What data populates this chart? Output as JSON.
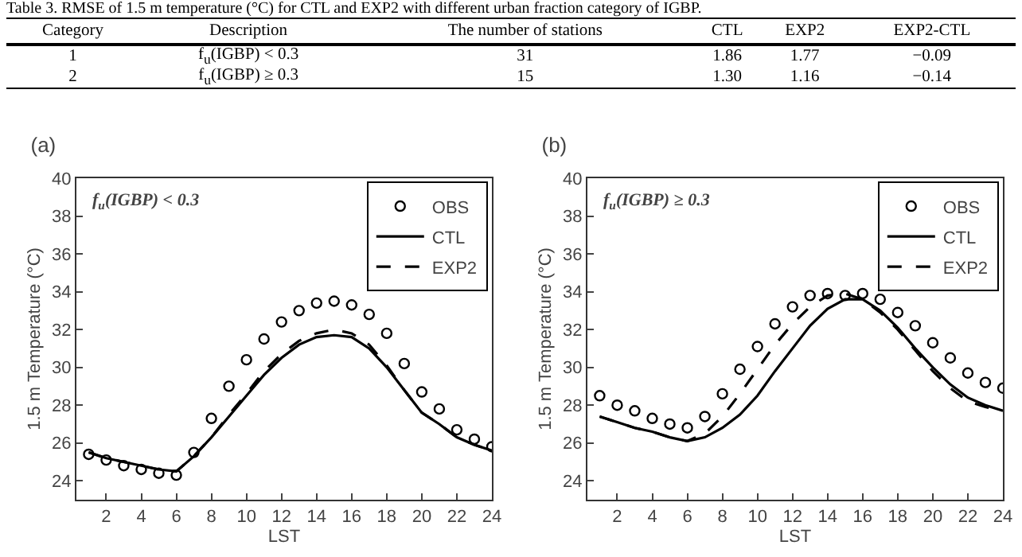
{
  "chart_data": [
    {
      "type": "other",
      "title": "Table 3. RMSE of 1.5 m temperature (°C) for CTL and EXP2 with different urban fraction category of IGBP.",
      "categories": [
        "Category",
        "Description",
        "The number of stations",
        "CTL",
        "EXP2",
        "EXP2-CTL"
      ],
      "cell_labels": [
        [
          "1",
          "f$_{u}$(IGBP) < 0.3",
          "31",
          "1.86",
          "1.77",
          "−0.09"
        ],
        [
          "2",
          "f$_{u}$(IGBP) ≥ 0.3",
          "15",
          "1.30",
          "1.16",
          "−0.14"
        ]
      ]
    },
    {
      "type": "line",
      "title": "(a)",
      "annotations": [
        "f$_{u}$(IGBP) < 0.3"
      ],
      "xlabel": "LST",
      "ylabel": "1.5 m Temperature (°C)",
      "x": [
        1,
        2,
        3,
        4,
        5,
        6,
        7,
        8,
        9,
        10,
        11,
        12,
        13,
        14,
        15,
        16,
        17,
        18,
        19,
        20,
        21,
        22,
        23,
        24
      ],
      "xlim": [
        0.3,
        24
      ],
      "xticks": [
        2,
        4,
        6,
        8,
        10,
        12,
        14,
        16,
        18,
        20,
        22,
        24
      ],
      "ylim": [
        23,
        40
      ],
      "yticks": [
        24,
        26,
        28,
        30,
        32,
        34,
        36,
        38,
        40
      ],
      "grid": false,
      "legend": "top right",
      "series": [
        {
          "name": "OBS",
          "type": "scatter",
          "marker": "circle",
          "color": "#000000",
          "values": [
            25.4,
            25.1,
            24.8,
            24.6,
            24.4,
            24.3,
            25.5,
            27.3,
            29.0,
            30.4,
            31.5,
            32.4,
            33.0,
            33.4,
            33.5,
            33.3,
            32.8,
            31.8,
            30.2,
            28.7,
            27.8,
            26.7,
            26.2,
            25.8
          ]
        },
        {
          "name": "CTL",
          "type": "line",
          "line_style": "solid",
          "color": "#000000",
          "values": [
            25.5,
            25.2,
            25.0,
            24.8,
            24.6,
            24.5,
            25.3,
            26.3,
            27.4,
            28.5,
            29.6,
            30.5,
            31.2,
            31.6,
            31.7,
            31.6,
            31.0,
            30.0,
            28.8,
            27.6,
            27.0,
            26.3,
            25.9,
            25.6
          ]
        },
        {
          "name": "EXP2",
          "type": "line",
          "line_style": "dashed",
          "color": "#000000",
          "values": [
            25.5,
            25.2,
            25.0,
            24.8,
            24.6,
            24.5,
            25.3,
            26.3,
            27.5,
            28.6,
            29.8,
            30.7,
            31.4,
            31.8,
            32.0,
            31.8,
            31.2,
            30.1,
            28.8,
            27.6,
            27.0,
            26.3,
            25.9,
            25.6
          ]
        }
      ]
    },
    {
      "type": "line",
      "title": "(b)",
      "annotations": [
        "f$_{u}$(IGBP) ≥ 0.3"
      ],
      "xlabel": "LST",
      "ylabel": "1.5 m Temperature (°C)",
      "x": [
        1,
        2,
        3,
        4,
        5,
        6,
        7,
        8,
        9,
        10,
        11,
        12,
        13,
        14,
        15,
        16,
        17,
        18,
        19,
        20,
        21,
        22,
        23,
        24
      ],
      "xlim": [
        0.3,
        24
      ],
      "xticks": [
        2,
        4,
        6,
        8,
        10,
        12,
        14,
        16,
        18,
        20,
        22,
        24
      ],
      "ylim": [
        23,
        40
      ],
      "yticks": [
        24,
        26,
        28,
        30,
        32,
        34,
        36,
        38,
        40
      ],
      "grid": false,
      "legend": "top right",
      "series": [
        {
          "name": "OBS",
          "type": "scatter",
          "marker": "circle",
          "color": "#000000",
          "values": [
            28.5,
            28.0,
            27.7,
            27.3,
            27.0,
            26.8,
            27.4,
            28.6,
            29.9,
            31.1,
            32.3,
            33.2,
            33.8,
            33.9,
            33.8,
            33.9,
            33.6,
            32.9,
            32.2,
            31.3,
            30.5,
            29.7,
            29.2,
            28.9
          ]
        },
        {
          "name": "CTL",
          "type": "line",
          "line_style": "solid",
          "color": "#000000",
          "values": [
            27.4,
            27.1,
            26.8,
            26.6,
            26.3,
            26.1,
            26.3,
            26.8,
            27.5,
            28.5,
            29.8,
            31.0,
            32.2,
            33.1,
            33.6,
            33.6,
            33.0,
            32.1,
            31.0,
            30.0,
            29.1,
            28.4,
            28.0,
            27.7
          ]
        },
        {
          "name": "EXP2",
          "type": "line",
          "line_style": "dashed",
          "color": "#000000",
          "values": [
            27.4,
            27.1,
            26.8,
            26.6,
            26.3,
            26.1,
            26.5,
            27.4,
            28.6,
            29.9,
            31.2,
            32.3,
            33.2,
            33.8,
            33.9,
            33.6,
            32.9,
            32.0,
            30.9,
            29.8,
            28.9,
            28.2,
            27.9,
            27.7
          ]
        }
      ]
    }
  ]
}
